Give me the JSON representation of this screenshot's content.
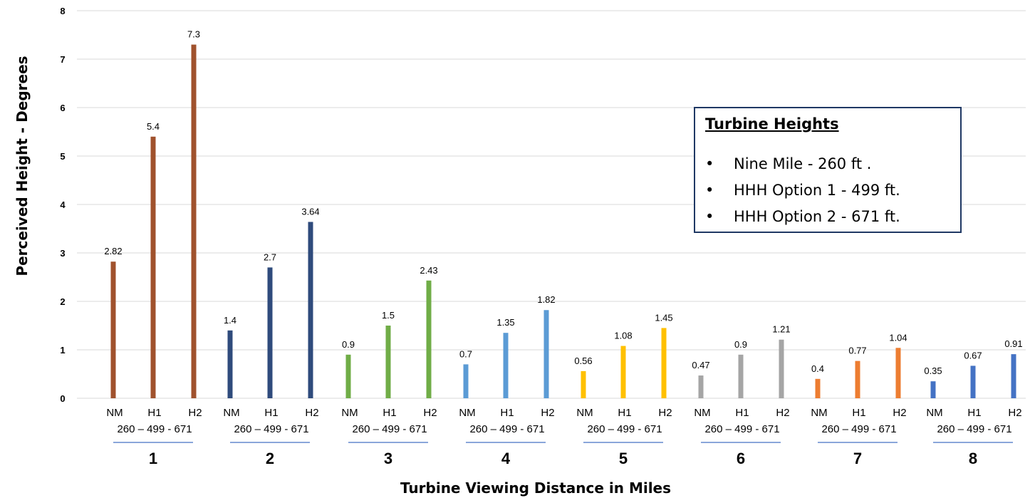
{
  "chart_data": {
    "type": "bar",
    "ylabel": "Perceived Height - Degrees",
    "xlabel": "Turbine Viewing Distance in Miles",
    "ylim": [
      0,
      8
    ],
    "yticks": [
      "0",
      "1",
      "2",
      "3",
      "4",
      "5",
      "6",
      "7",
      "8"
    ],
    "grid": true,
    "bar_labels": [
      "NM",
      "H1",
      "H2"
    ],
    "height_labels": "260 – 499 - 671",
    "groups": [
      {
        "label": "1",
        "color": "#a0522d",
        "values": [
          2.82,
          5.4,
          7.3
        ],
        "value_labels": [
          "2.82",
          "5.4",
          "7.3"
        ]
      },
      {
        "label": "2",
        "color": "#2f4b7c",
        "values": [
          1.4,
          2.7,
          3.64
        ],
        "value_labels": [
          "1.4",
          "2.7",
          "3.64"
        ]
      },
      {
        "label": "3",
        "color": "#70ad47",
        "values": [
          0.9,
          1.5,
          2.43
        ],
        "value_labels": [
          "0.9",
          "1.5",
          "2.43"
        ]
      },
      {
        "label": "4",
        "color": "#5b9bd5",
        "values": [
          0.7,
          1.35,
          1.82
        ],
        "value_labels": [
          "0.7",
          "1.35",
          "1.82"
        ]
      },
      {
        "label": "5",
        "color": "#ffc000",
        "values": [
          0.56,
          1.08,
          1.45
        ],
        "value_labels": [
          "0.56",
          "1.08",
          "1.45"
        ]
      },
      {
        "label": "6",
        "color": "#a5a5a5",
        "values": [
          0.47,
          0.9,
          1.21
        ],
        "value_labels": [
          "0.47",
          "0.9",
          "1.21"
        ]
      },
      {
        "label": "7",
        "color": "#ed7d31",
        "values": [
          0.4,
          0.77,
          1.04
        ],
        "value_labels": [
          "0.4",
          "0.77",
          "1.04"
        ]
      },
      {
        "label": "8",
        "color": "#4472c4",
        "values": [
          0.35,
          0.67,
          0.91
        ],
        "value_labels": [
          "0.35",
          "0.67",
          "0.91"
        ]
      }
    ],
    "legend": {
      "title": "Turbine Heights",
      "items": [
        "Nine Mile - 260 ft .",
        "HHH Option 1 - 499 ft.",
        "HHH Option 2 - 671 ft."
      ],
      "position": "right",
      "border_color": "#1f3864"
    },
    "underline_color": "#4472c4",
    "gridline_color": "#d9d9d9"
  }
}
